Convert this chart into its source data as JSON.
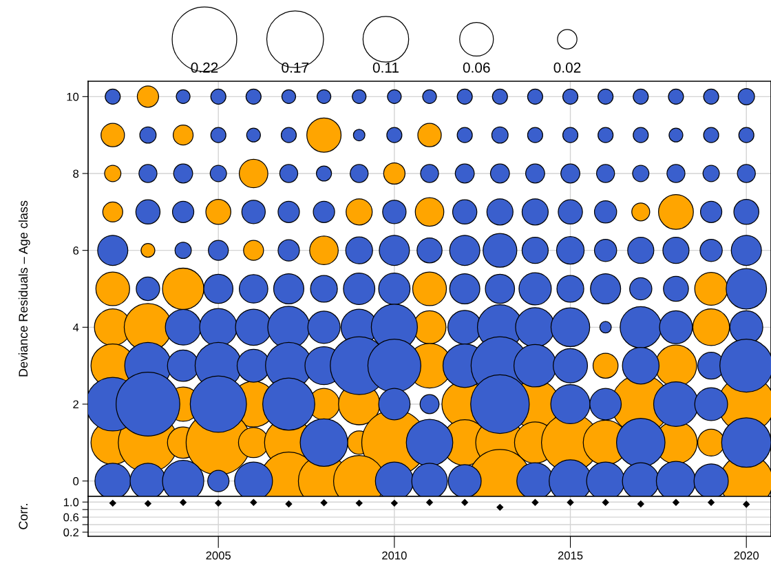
{
  "chart_data": [
    {
      "type": "bubble",
      "ylabel": "Deviance Residuals – Age class",
      "marker": "circle",
      "grid": true,
      "tick_labels": "y",
      "xlim": [
        2001.3,
        2020.7
      ],
      "xticks": [
        2005,
        2010,
        2015,
        2020
      ],
      "ylim": [
        -0.4,
        10.4
      ],
      "yticks": [
        0,
        2,
        4,
        6,
        8,
        10
      ],
      "size_legend": [
        0.22,
        0.17,
        0.11,
        0.06,
        0.02
      ],
      "series": [
        {
          "color": "#ffa500",
          "x": [
            2003,
            2002,
            2004,
            2008,
            2011,
            2002,
            2006,
            2010,
            2002,
            2005,
            2009,
            2011,
            2017,
            2018,
            2003,
            2006,
            2008,
            2002,
            2004,
            2011,
            2019,
            2002,
            2003,
            2011,
            2019,
            2002,
            2011,
            2016,
            2018,
            2004,
            2006,
            2008,
            2009,
            2012,
            2014,
            2017,
            2020,
            2002,
            2003,
            2004,
            2005,
            2006,
            2007,
            2009,
            2010,
            2012,
            2013,
            2014,
            2015,
            2016,
            2018,
            2019,
            2007,
            2008,
            2009,
            2013,
            2020
          ],
          "values": [
            10,
            9,
            9,
            9,
            9,
            8,
            8,
            8,
            7,
            7,
            7,
            7,
            7,
            7,
            6,
            6,
            6,
            5,
            5,
            5,
            5,
            4,
            4,
            4,
            4,
            3,
            3,
            3,
            3,
            2,
            2,
            2,
            2,
            2,
            2,
            2,
            2,
            1,
            1,
            1,
            1,
            1,
            1,
            1,
            1,
            1,
            1,
            1,
            1,
            1,
            1,
            1,
            0,
            0,
            0,
            0,
            0
          ],
          "sizes": [
            0.024,
            0.029,
            0.021,
            0.062,
            0.029,
            0.014,
            0.043,
            0.024,
            0.021,
            0.033,
            0.036,
            0.043,
            0.017,
            0.064,
            0.01,
            0.021,
            0.043,
            0.06,
            0.09,
            0.06,
            0.057,
            0.071,
            0.119,
            0.057,
            0.071,
            0.1,
            0.105,
            0.033,
            0.09,
            0.062,
            0.11,
            0.052,
            0.09,
            0.11,
            0.124,
            0.181,
            0.167,
            0.1,
            0.186,
            0.052,
            0.219,
            0.048,
            0.124,
            0.029,
            0.224,
            0.11,
            0.124,
            0.09,
            0.176,
            0.105,
            0.095,
            0.038,
            0.176,
            0.138,
            0.138,
            0.21,
            0.148
          ]
        },
        {
          "color": "#3a5fcd",
          "x": [
            2002,
            2004,
            2005,
            2006,
            2007,
            2008,
            2009,
            2010,
            2011,
            2012,
            2013,
            2014,
            2015,
            2016,
            2017,
            2018,
            2019,
            2020,
            2003,
            2005,
            2006,
            2007,
            2009,
            2010,
            2012,
            2013,
            2014,
            2015,
            2016,
            2017,
            2018,
            2019,
            2020,
            2003,
            2004,
            2005,
            2007,
            2008,
            2009,
            2011,
            2012,
            2013,
            2014,
            2015,
            2016,
            2017,
            2018,
            2019,
            2020,
            2003,
            2004,
            2006,
            2007,
            2008,
            2010,
            2012,
            2013,
            2014,
            2015,
            2016,
            2019,
            2020,
            2002,
            2004,
            2005,
            2007,
            2009,
            2010,
            2011,
            2012,
            2013,
            2014,
            2015,
            2016,
            2017,
            2018,
            2019,
            2020,
            2003,
            2005,
            2006,
            2007,
            2008,
            2009,
            2010,
            2012,
            2013,
            2014,
            2015,
            2016,
            2017,
            2018,
            2020,
            2004,
            2005,
            2006,
            2007,
            2008,
            2009,
            2010,
            2012,
            2013,
            2014,
            2015,
            2016,
            2017,
            2018,
            2020,
            2003,
            2004,
            2005,
            2006,
            2007,
            2008,
            2009,
            2010,
            2012,
            2013,
            2014,
            2015,
            2017,
            2019,
            2020,
            2002,
            2003,
            2005,
            2007,
            2010,
            2011,
            2013,
            2015,
            2016,
            2018,
            2019,
            2008,
            2011,
            2017,
            2020,
            2002,
            2003,
            2004,
            2005,
            2006,
            2010,
            2011,
            2012,
            2014,
            2015,
            2016,
            2017,
            2018,
            2019
          ],
          "values": [
            10,
            10,
            10,
            10,
            10,
            10,
            10,
            10,
            10,
            10,
            10,
            10,
            10,
            10,
            10,
            10,
            10,
            10,
            9,
            9,
            9,
            9,
            9,
            9,
            9,
            9,
            9,
            9,
            9,
            9,
            9,
            9,
            9,
            8,
            8,
            8,
            8,
            8,
            8,
            8,
            8,
            8,
            8,
            8,
            8,
            8,
            8,
            8,
            8,
            7,
            7,
            7,
            7,
            7,
            7,
            7,
            7,
            7,
            7,
            7,
            7,
            7,
            6,
            6,
            6,
            6,
            6,
            6,
            6,
            6,
            6,
            6,
            6,
            6,
            6,
            6,
            6,
            6,
            5,
            5,
            5,
            5,
            5,
            5,
            5,
            5,
            5,
            5,
            5,
            5,
            5,
            5,
            5,
            4,
            4,
            4,
            4,
            4,
            4,
            4,
            4,
            4,
            4,
            4,
            4,
            4,
            4,
            4,
            3,
            3,
            3,
            3,
            3,
            3,
            3,
            3,
            3,
            3,
            3,
            3,
            3,
            3,
            3,
            2,
            2,
            2,
            2,
            2,
            2,
            2,
            2,
            2,
            2,
            2,
            1,
            1,
            1,
            1,
            0,
            0,
            0,
            0,
            0,
            0,
            0,
            0,
            0,
            0,
            0,
            0,
            0,
            0
          ],
          "sizes": [
            0.012,
            0.01,
            0.012,
            0.012,
            0.01,
            0.01,
            0.01,
            0.01,
            0.01,
            0.012,
            0.012,
            0.012,
            0.012,
            0.012,
            0.012,
            0.012,
            0.012,
            0.014,
            0.014,
            0.012,
            0.01,
            0.012,
            0.007,
            0.012,
            0.012,
            0.014,
            0.012,
            0.012,
            0.012,
            0.012,
            0.01,
            0.012,
            0.012,
            0.017,
            0.019,
            0.014,
            0.017,
            0.012,
            0.017,
            0.017,
            0.019,
            0.019,
            0.019,
            0.019,
            0.017,
            0.014,
            0.017,
            0.014,
            0.017,
            0.031,
            0.024,
            0.029,
            0.024,
            0.024,
            0.029,
            0.031,
            0.036,
            0.036,
            0.031,
            0.026,
            0.024,
            0.033,
            0.048,
            0.014,
            0.021,
            0.024,
            0.038,
            0.048,
            0.033,
            0.048,
            0.06,
            0.036,
            0.04,
            0.026,
            0.036,
            0.036,
            0.026,
            0.048,
            0.029,
            0.045,
            0.043,
            0.048,
            0.038,
            0.052,
            0.052,
            0.048,
            0.045,
            0.055,
            0.038,
            0.048,
            0.026,
            0.033,
            0.086,
            0.067,
            0.074,
            0.069,
            0.093,
            0.055,
            0.069,
            0.112,
            0.06,
            0.107,
            0.081,
            0.079,
            0.007,
            0.09,
            0.057,
            0.057,
            0.114,
            0.052,
            0.114,
            0.057,
            0.114,
            0.076,
            0.176,
            0.148,
            0.1,
            0.176,
            0.095,
            0.062,
            0.071,
            0.038,
            0.148,
            0.152,
            0.214,
            0.167,
            0.143,
            0.052,
            0.019,
            0.181,
            0.081,
            0.052,
            0.105,
            0.057,
            0.119,
            0.114,
            0.124,
            0.129,
            0.067,
            0.067,
            0.09,
            0.024,
            0.076,
            0.076,
            0.067,
            0.057,
            0.071,
            0.095,
            0.076,
            0.071,
            0.081,
            0.062
          ]
        }
      ]
    },
    {
      "type": "scatter",
      "ylabel": "Corr.",
      "marker": "diamond",
      "grid": true,
      "color": "#000000",
      "xlim": [
        2001.3,
        2020.7
      ],
      "xticks": [
        2005,
        2010,
        2015,
        2020
      ],
      "ylim": [
        0.09,
        1.15
      ],
      "yticks": [
        {
          "value": 0.2,
          "label": "0.2"
        },
        {
          "value": 0.4,
          "label": null
        },
        {
          "value": 0.6,
          "label": "0.6"
        },
        {
          "value": 0.8,
          "label": null
        },
        {
          "value": 1.0,
          "label": "1.0"
        }
      ],
      "x": [
        2002,
        2003,
        2004,
        2005,
        2006,
        2007,
        2008,
        2009,
        2010,
        2011,
        2012,
        2013,
        2014,
        2015,
        2016,
        2017,
        2018,
        2019,
        2020
      ],
      "values": [
        0.97,
        0.96,
        0.99,
        0.97,
        0.99,
        0.95,
        0.98,
        0.97,
        0.97,
        0.99,
        0.99,
        0.86,
        0.99,
        0.99,
        0.99,
        0.95,
        0.99,
        0.99,
        0.94
      ]
    }
  ]
}
